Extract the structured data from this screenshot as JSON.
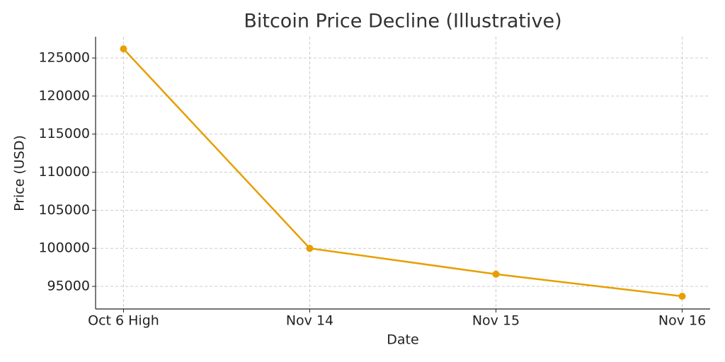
{
  "chart_data": {
    "type": "line",
    "title": "Bitcoin Price Decline (Illustrative)",
    "x_label": "Date",
    "y_label": "Price (USD)",
    "categories": [
      "Oct 6 High",
      "Nov 14",
      "Nov 15",
      "Nov 16"
    ],
    "series": [
      {
        "name": "Price",
        "color": "#e69f00",
        "values": [
          126200,
          100000,
          96600,
          93700
        ]
      }
    ],
    "ylim": [
      92030,
      127790
    ],
    "yticks": [
      95000,
      100000,
      105000,
      110000,
      115000,
      120000,
      125000
    ],
    "grid": true
  }
}
